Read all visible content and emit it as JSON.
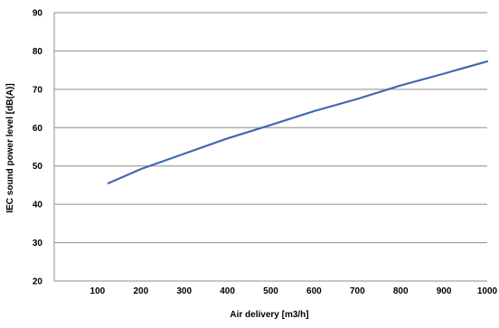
{
  "chart_data": {
    "type": "line",
    "title": "",
    "xlabel": "Air delivery [m3/h]",
    "ylabel": "IEC sound power level [dB(A)]",
    "xlim": [
      0,
      1000
    ],
    "ylim": [
      20,
      90
    ],
    "x_ticks": [
      100,
      200,
      300,
      400,
      500,
      600,
      700,
      800,
      900,
      1000
    ],
    "y_ticks": [
      20,
      30,
      40,
      50,
      60,
      70,
      80,
      90
    ],
    "grid": {
      "horizontal": true,
      "vertical": false
    },
    "legend": "none",
    "series": [
      {
        "color": "#4169b1",
        "x": [
          125,
          200,
          300,
          400,
          500,
          600,
          700,
          800,
          900,
          1000
        ],
        "y": [
          45.5,
          49.2,
          53.2,
          57.2,
          60.7,
          64.3,
          67.5,
          71.0,
          74.1,
          77.3
        ]
      }
    ]
  }
}
